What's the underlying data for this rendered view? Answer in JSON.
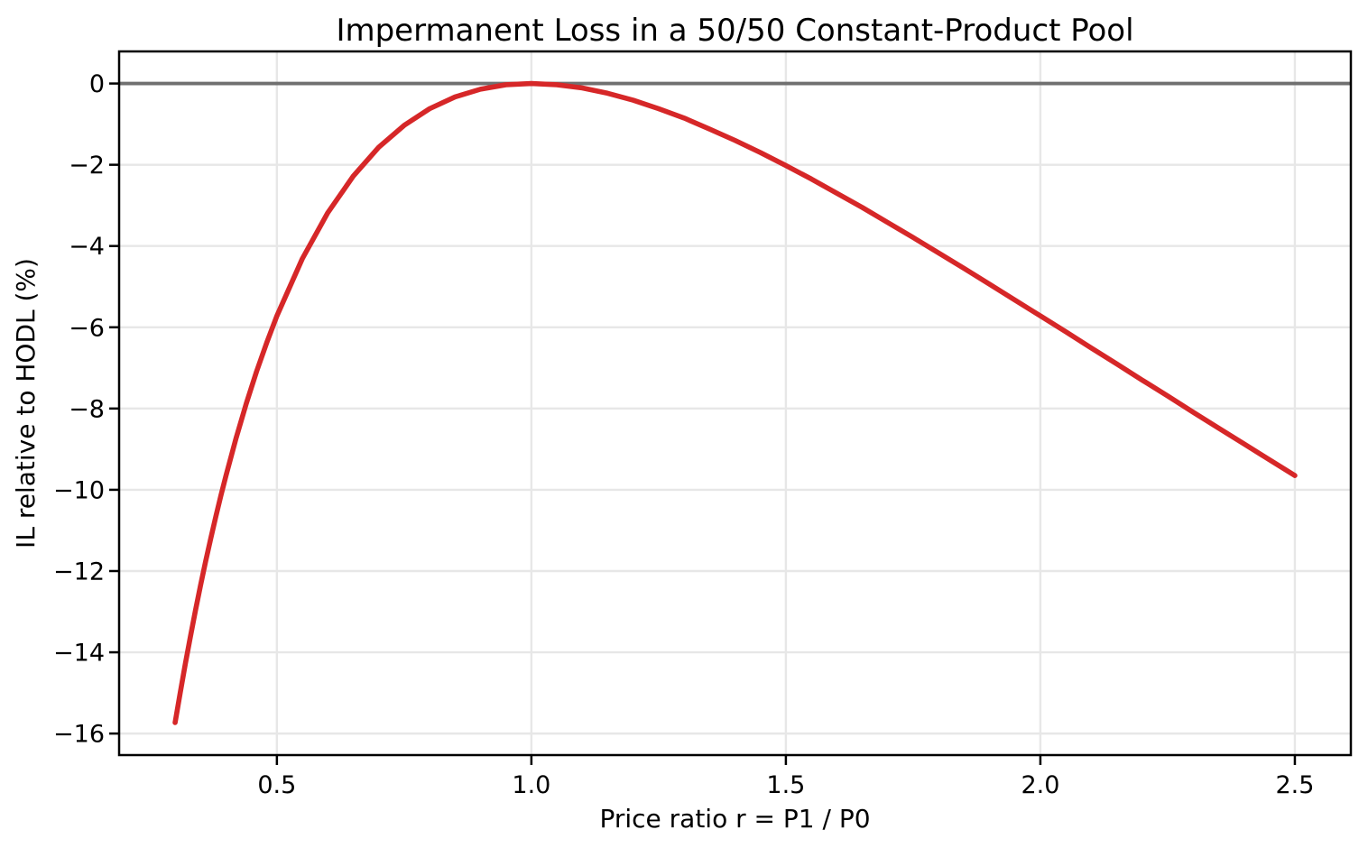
{
  "chart_data": {
    "type": "line",
    "title": "Impermanent Loss in a 50/50 Constant-Product Pool",
    "xlabel": "Price ratio r = P1 / P0",
    "ylabel": "IL relative to HODL (%)",
    "xlim": [
      0.19,
      2.61
    ],
    "ylim": [
      -16.53,
      0.79
    ],
    "xticks": [
      0.5,
      1.0,
      1.5,
      2.0,
      2.5
    ],
    "xtick_labels": [
      "0.5",
      "1.0",
      "1.5",
      "2.0",
      "2.5"
    ],
    "yticks": [
      0,
      -2,
      -4,
      -6,
      -8,
      -10,
      -12,
      -14,
      -16
    ],
    "ytick_labels": [
      "0",
      "−2",
      "−4",
      "−6",
      "−8",
      "−10",
      "−12",
      "−14",
      "−16"
    ],
    "grid": true,
    "legend": null,
    "zero_line_y": 0,
    "series": [
      {
        "color": "#d62728",
        "x": [
          0.3,
          0.31,
          0.32,
          0.33,
          0.34,
          0.35,
          0.36,
          0.37,
          0.38,
          0.39,
          0.4,
          0.42,
          0.44,
          0.46,
          0.48,
          0.5,
          0.55,
          0.6,
          0.65,
          0.7,
          0.75,
          0.8,
          0.85,
          0.9,
          0.95,
          1.0,
          1.05,
          1.1,
          1.15,
          1.2,
          1.25,
          1.3,
          1.35,
          1.4,
          1.45,
          1.5,
          1.55,
          1.6,
          1.65,
          1.7,
          1.75,
          1.8,
          1.85,
          1.9,
          1.95,
          2.0,
          2.05,
          2.1,
          2.15,
          2.2,
          2.25,
          2.3,
          2.35,
          2.4,
          2.45,
          2.5
        ],
        "y": [
          -15.73,
          -15.0,
          -14.29,
          -13.62,
          -12.97,
          -12.35,
          -11.76,
          -11.2,
          -10.66,
          -10.14,
          -9.65,
          -8.72,
          -7.87,
          -7.09,
          -6.38,
          -5.72,
          -4.31,
          -3.18,
          -2.28,
          -1.57,
          -1.03,
          -0.62,
          -0.33,
          -0.14,
          -0.03,
          0.0,
          -0.03,
          -0.11,
          -0.24,
          -0.41,
          -0.62,
          -0.85,
          -1.12,
          -1.4,
          -1.7,
          -2.02,
          -2.35,
          -2.7,
          -3.05,
          -3.42,
          -3.79,
          -4.17,
          -4.55,
          -4.94,
          -5.33,
          -5.72,
          -6.11,
          -6.51,
          -6.9,
          -7.3,
          -7.69,
          -8.09,
          -8.48,
          -8.87,
          -9.26,
          -9.65
        ]
      }
    ],
    "colors": {
      "line": "#d62728",
      "zero_line": "#707070",
      "grid": "#e7e7e7",
      "spine": "#000000",
      "text": "#000000",
      "background": "#ffffff"
    }
  }
}
